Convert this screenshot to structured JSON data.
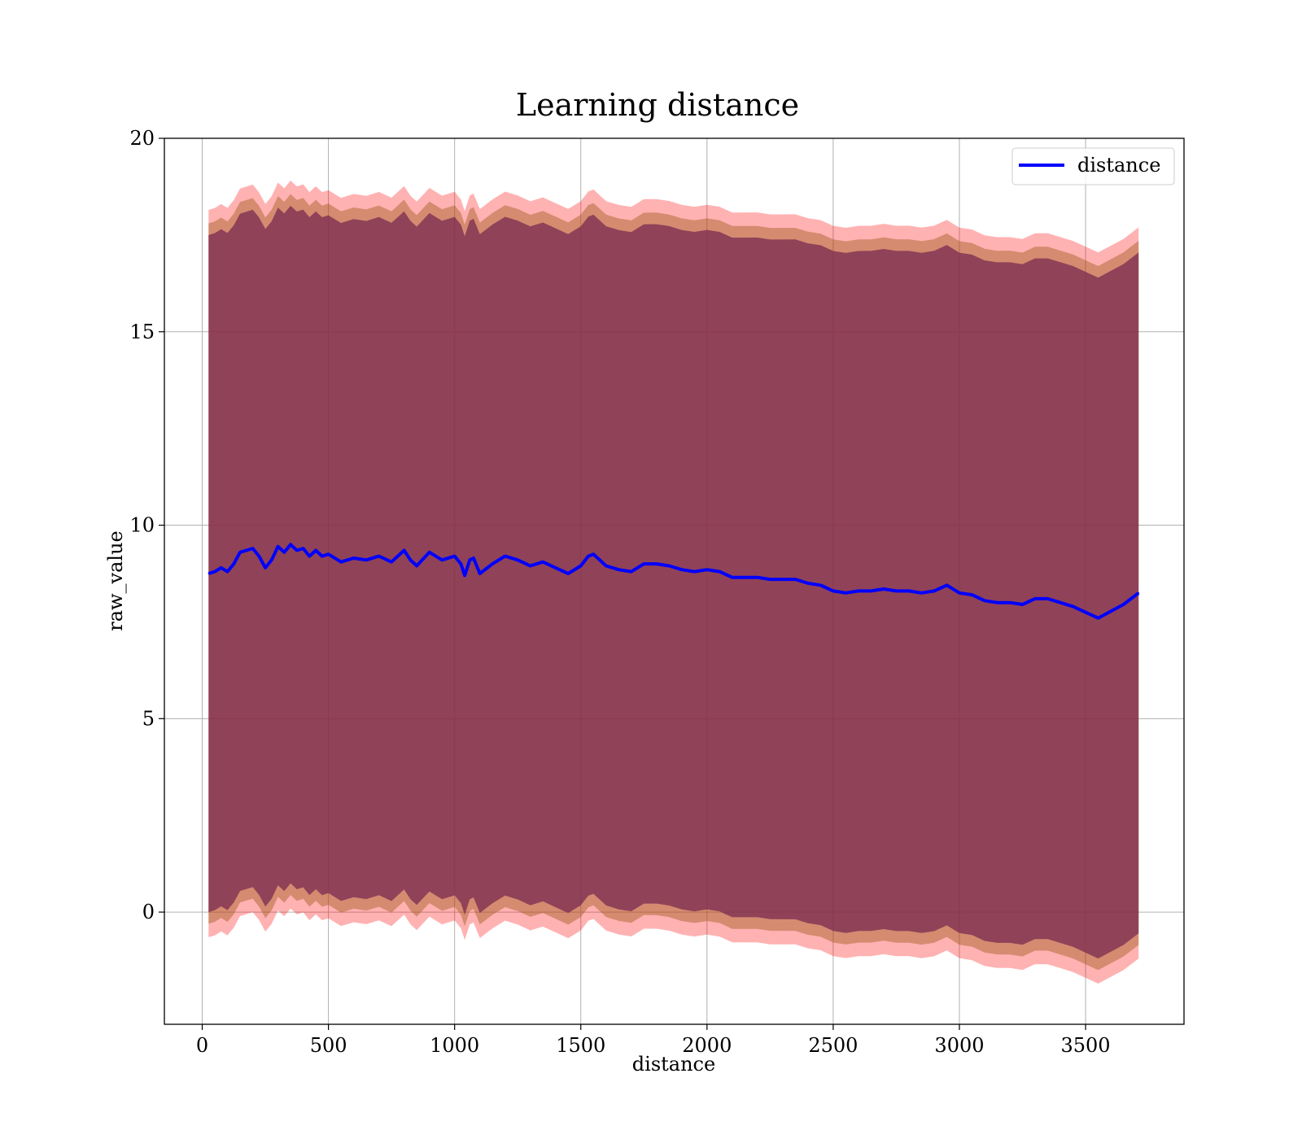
{
  "chart_data": {
    "type": "line",
    "title": "Learning distance",
    "xlabel": "distance",
    "ylabel": "raw_value",
    "xlim": [
      -150,
      3890
    ],
    "ylim": [
      -2.9,
      20
    ],
    "grid": true,
    "legend_position": "top-right",
    "x_ticks": [
      0,
      500,
      1000,
      1500,
      2000,
      2500,
      3000,
      3500
    ],
    "x_tick_labels": [
      "0",
      "500",
      "1000",
      "1500",
      "2000",
      "2500",
      "3000",
      "3500"
    ],
    "y_ticks": [
      0,
      5,
      10,
      15,
      20
    ],
    "y_tick_labels": [
      "0",
      "5",
      "10",
      "15",
      "20"
    ],
    "colors": {
      "line": "#0000ff",
      "band_outer": "#ff0000",
      "band_middle": "#a05a1e",
      "band_inner": "#7a2a50",
      "grid": "#b0b0b0"
    },
    "series": [
      {
        "name": "distance",
        "x": [
          25,
          50,
          75,
          100,
          125,
          150,
          175,
          200,
          225,
          250,
          275,
          300,
          325,
          350,
          375,
          400,
          425,
          450,
          475,
          500,
          550,
          600,
          650,
          700,
          750,
          800,
          825,
          850,
          900,
          950,
          1000,
          1025,
          1040,
          1060,
          1075,
          1100,
          1150,
          1200,
          1250,
          1300,
          1350,
          1400,
          1450,
          1500,
          1530,
          1550,
          1600,
          1650,
          1700,
          1750,
          1800,
          1850,
          1900,
          1950,
          2000,
          2050,
          2100,
          2200,
          2250,
          2300,
          2350,
          2400,
          2450,
          2500,
          2550,
          2600,
          2650,
          2700,
          2750,
          2800,
          2850,
          2900,
          2950,
          3000,
          3050,
          3100,
          3150,
          3200,
          3250,
          3300,
          3350,
          3400,
          3450,
          3550,
          3650,
          3710
        ],
        "values": [
          8.75,
          8.8,
          8.9,
          8.8,
          9.0,
          9.3,
          9.35,
          9.4,
          9.2,
          8.9,
          9.1,
          9.45,
          9.3,
          9.5,
          9.35,
          9.4,
          9.2,
          9.35,
          9.2,
          9.25,
          9.05,
          9.15,
          9.1,
          9.2,
          9.05,
          9.35,
          9.1,
          8.95,
          9.3,
          9.1,
          9.2,
          9.0,
          8.7,
          9.1,
          9.15,
          8.75,
          9.0,
          9.2,
          9.1,
          8.95,
          9.05,
          8.9,
          8.75,
          8.95,
          9.2,
          9.25,
          8.95,
          8.85,
          8.8,
          9.0,
          9.0,
          8.95,
          8.85,
          8.8,
          8.85,
          8.8,
          8.65,
          8.65,
          8.6,
          8.6,
          8.6,
          8.5,
          8.45,
          8.3,
          8.25,
          8.3,
          8.3,
          8.35,
          8.3,
          8.3,
          8.25,
          8.3,
          8.45,
          8.25,
          8.2,
          8.05,
          8.0,
          8.0,
          7.95,
          8.1,
          8.1,
          8.0,
          7.9,
          7.6,
          7.95,
          8.25
        ]
      }
    ],
    "bands": [
      {
        "half_width_start": 9.4,
        "half_width_end": 9.45
      },
      {
        "half_width_start": 9.05,
        "half_width_end": 9.1
      },
      {
        "half_width_start": 8.75,
        "half_width_end": 8.8
      }
    ]
  }
}
